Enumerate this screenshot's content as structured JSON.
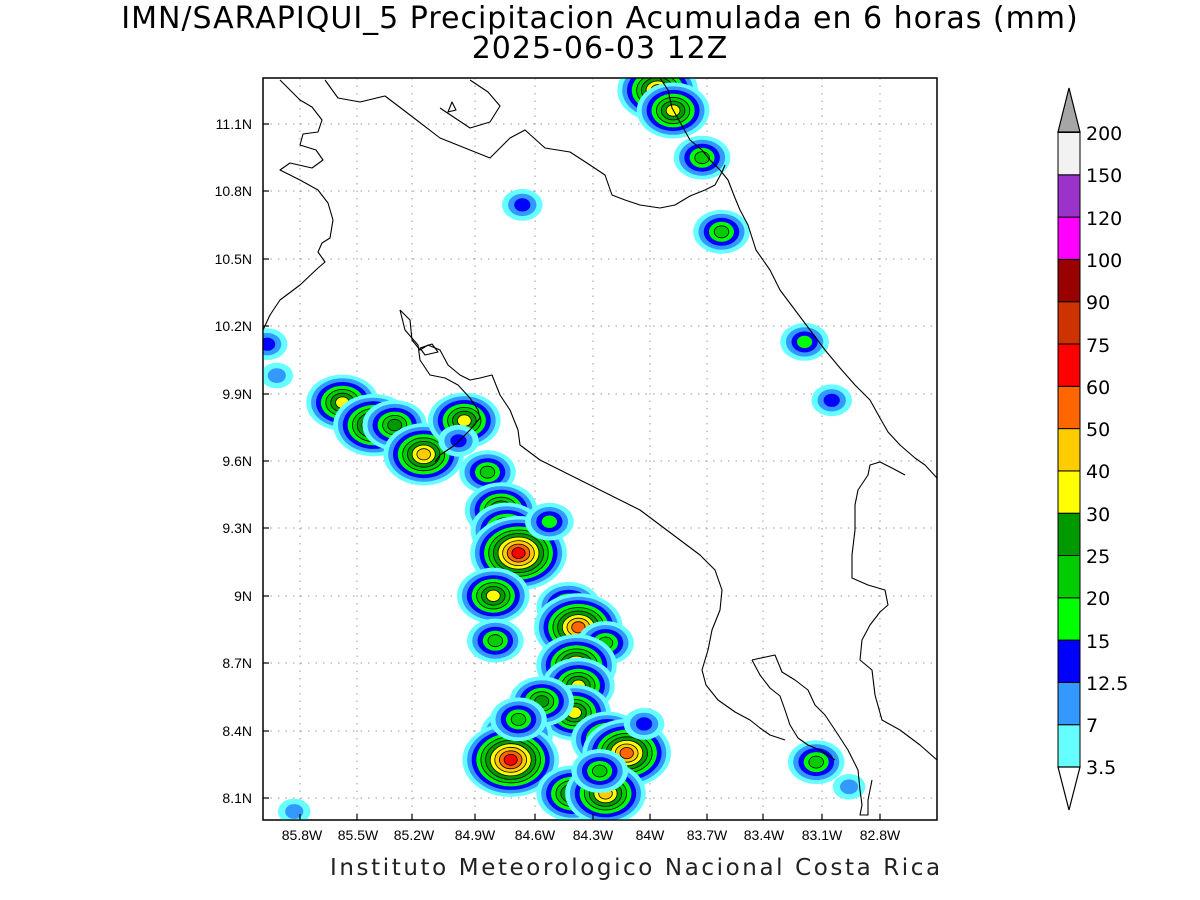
{
  "title_line1": "IMN/SARAPIQUI_5 Precipitacion Acumulada en 6 horas (mm)",
  "title_line2": "2025-06-03 12Z",
  "footer": "Instituto Meteorologico Nacional Costa Rica",
  "axes": {
    "lon_ticks": [
      "85.8W",
      "85.5W",
      "85.2W",
      "84.9W",
      "84.6W",
      "84.3W",
      "84W",
      "83.7W",
      "83.4W",
      "83.1W",
      "82.8W"
    ],
    "lat_ticks": [
      "11.1N",
      "10.8N",
      "10.5N",
      "10.2N",
      "9.9N",
      "9.6N",
      "9.3N",
      "9N",
      "8.7N",
      "8.4N",
      "8.1N"
    ]
  },
  "colorbar": {
    "labels": [
      "3.5",
      "7",
      "12.5",
      "15",
      "20",
      "25",
      "30",
      "40",
      "50",
      "60",
      "75",
      "90",
      "100",
      "120",
      "150",
      "200"
    ],
    "colors": [
      "#ffffff",
      "#66ffff",
      "#3399ff",
      "#0000ff",
      "#00ff00",
      "#00cc00",
      "#009900",
      "#ffff00",
      "#ffcc00",
      "#ff6600",
      "#ff0000",
      "#cc3300",
      "#990000",
      "#ff00ff",
      "#9933cc",
      "#f2f2f2"
    ],
    "max_arrow_color": "#a6a6a6"
  },
  "map_data": {
    "rain_cells": [
      {
        "lon": -85.58,
        "lat": 9.86,
        "mm": 32
      },
      {
        "lon": -85.42,
        "lat": 9.76,
        "mm": 40
      },
      {
        "lon": -85.31,
        "lat": 9.76,
        "mm": 28
      },
      {
        "lon": -85.16,
        "lat": 9.63,
        "mm": 48
      },
      {
        "lon": -84.95,
        "lat": 9.78,
        "mm": 30
      },
      {
        "lon": -84.98,
        "lat": 9.69,
        "mm": 14
      },
      {
        "lon": -84.83,
        "lat": 9.55,
        "mm": 22
      },
      {
        "lon": -84.76,
        "lat": 9.38,
        "mm": 35
      },
      {
        "lon": -84.73,
        "lat": 9.29,
        "mm": 38
      },
      {
        "lon": -84.67,
        "lat": 9.19,
        "mm": 70
      },
      {
        "lon": -84.8,
        "lat": 9.0,
        "mm": 36
      },
      {
        "lon": -84.51,
        "lat": 9.33,
        "mm": 18
      },
      {
        "lon": -84.41,
        "lat": 8.95,
        "mm": 28
      },
      {
        "lon": -84.36,
        "lat": 8.86,
        "mm": 55
      },
      {
        "lon": -84.22,
        "lat": 8.79,
        "mm": 24
      },
      {
        "lon": -84.37,
        "lat": 8.69,
        "mm": 40
      },
      {
        "lon": -84.36,
        "lat": 8.6,
        "mm": 30
      },
      {
        "lon": -84.38,
        "lat": 8.48,
        "mm": 34
      },
      {
        "lon": -84.21,
        "lat": 8.36,
        "mm": 38
      },
      {
        "lon": -84.11,
        "lat": 8.3,
        "mm": 55
      },
      {
        "lon": -84.68,
        "lat": 8.38,
        "mm": 34
      },
      {
        "lon": -84.71,
        "lat": 8.27,
        "mm": 62
      },
      {
        "lon": -84.55,
        "lat": 8.53,
        "mm": 26
      },
      {
        "lon": -84.67,
        "lat": 8.45,
        "mm": 20
      },
      {
        "lon": -84.39,
        "lat": 8.12,
        "mm": 30
      },
      {
        "lon": -84.22,
        "lat": 8.12,
        "mm": 40
      },
      {
        "lon": -84.25,
        "lat": 8.22,
        "mm": 20
      },
      {
        "lon": -84.79,
        "lat": 8.8,
        "mm": 20
      },
      {
        "lon": -83.95,
        "lat": 11.25,
        "mm": 42
      },
      {
        "lon": -83.87,
        "lat": 11.16,
        "mm": 34
      },
      {
        "lon": -83.72,
        "lat": 10.95,
        "mm": 24
      },
      {
        "lon": -83.62,
        "lat": 10.62,
        "mm": 22
      },
      {
        "lon": -83.19,
        "lat": 10.13,
        "mm": 18
      },
      {
        "lon": -83.13,
        "lat": 8.26,
        "mm": 24
      },
      {
        "lon": -83.05,
        "lat": 9.87,
        "mm": 14
      },
      {
        "lon": -85.97,
        "lat": 10.12,
        "mm": 14
      },
      {
        "lon": -85.92,
        "lat": 9.98,
        "mm": 12
      },
      {
        "lon": -84.65,
        "lat": 10.74,
        "mm": 13
      },
      {
        "lon": -85.83,
        "lat": 8.04,
        "mm": 12
      },
      {
        "lon": -84.02,
        "lat": 8.43,
        "mm": 14
      },
      {
        "lon": -82.96,
        "lat": 8.15,
        "mm": 8
      }
    ]
  }
}
